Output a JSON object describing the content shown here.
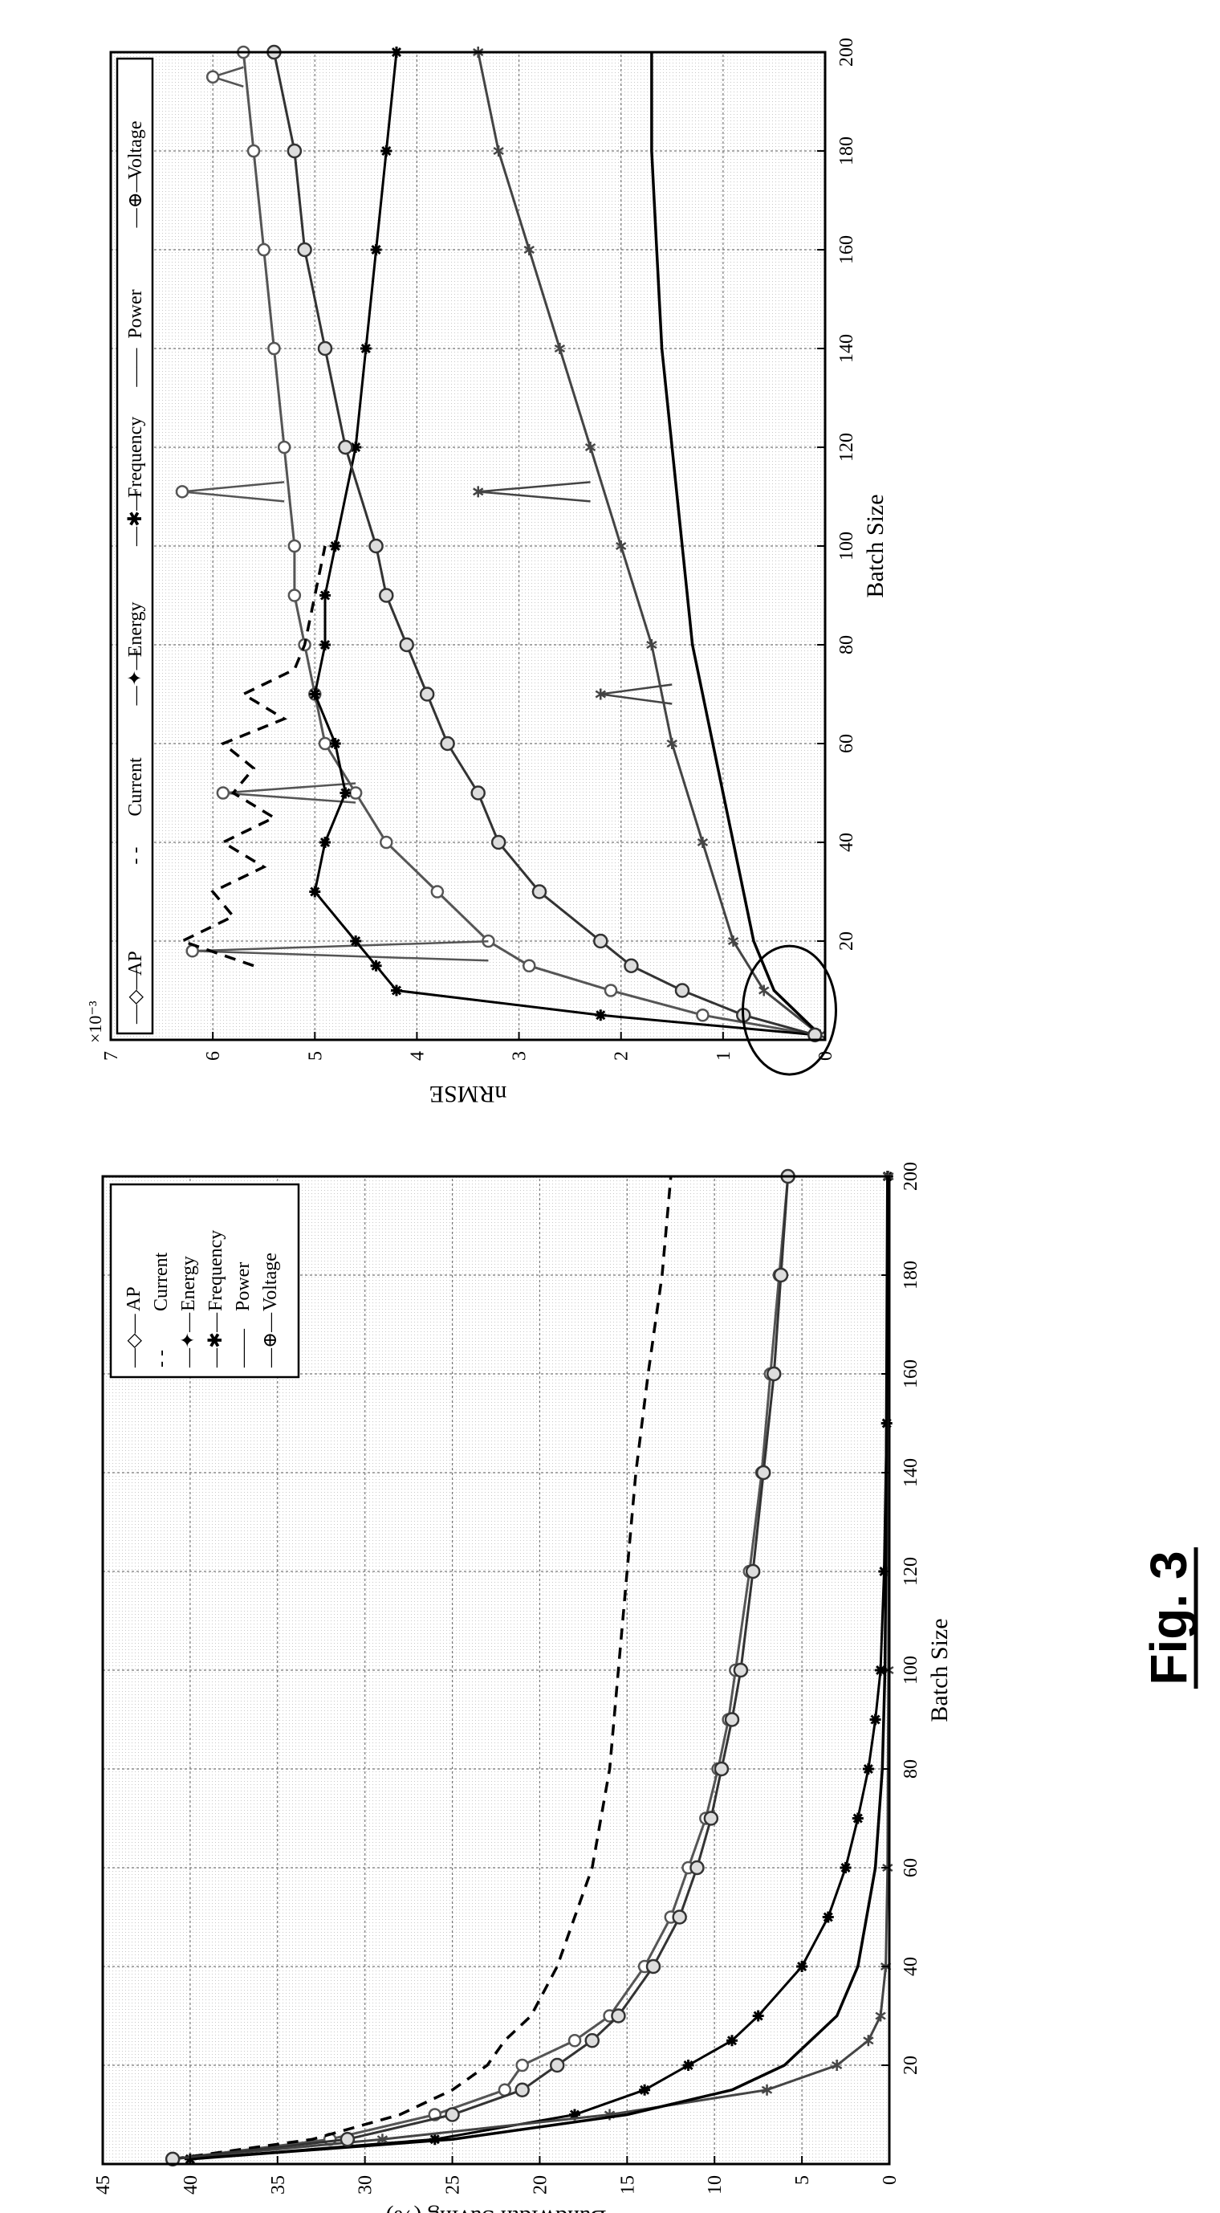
{
  "figure_label": "Fig. 3",
  "chart_data": [
    {
      "type": "line",
      "xlabel": "Batch Size",
      "ylabel": "nRMSE",
      "axis_multiplier": "×10⁻³",
      "xlim": [
        0,
        200
      ],
      "ylim": [
        0,
        7
      ],
      "xticks": [
        20,
        40,
        60,
        80,
        100,
        120,
        140,
        160,
        180,
        200
      ],
      "yticks": [
        0,
        1,
        2,
        3,
        4,
        5,
        6,
        7
      ],
      "grid": true,
      "legend_position": "top",
      "legend_marker_only": [
        "—◇—",
        "- -",
        "—✦—",
        "—✱—",
        "——",
        "—⊕—"
      ],
      "series": [
        {
          "name": "AP",
          "marker": "circle",
          "color": "#555555",
          "x": [
            1,
            5,
            10,
            15,
            20,
            30,
            40,
            50,
            60,
            70,
            80,
            90,
            100,
            120,
            140,
            160,
            180,
            200
          ],
          "y": [
            0.1,
            1.2,
            2.1,
            2.9,
            3.3,
            3.8,
            4.3,
            4.6,
            4.9,
            5.0,
            5.1,
            5.2,
            5.2,
            5.3,
            5.4,
            5.5,
            5.6,
            5.7
          ],
          "spikes": [
            {
              "x": 18,
              "y": 6.2
            },
            {
              "x": 50,
              "y": 5.9
            },
            {
              "x": 111,
              "y": 6.3
            },
            {
              "x": 195,
              "y": 6.0
            }
          ]
        },
        {
          "name": "Current",
          "marker": "none",
          "dash": "dashed",
          "color": "#000000",
          "x": [
            15,
            20,
            25,
            30,
            35,
            40,
            45,
            50,
            55,
            60,
            65,
            70,
            75,
            80,
            90,
            100
          ],
          "y": [
            5.6,
            6.3,
            5.8,
            6.0,
            5.5,
            5.9,
            5.4,
            5.8,
            5.6,
            5.9,
            5.3,
            5.7,
            5.2,
            5.1,
            5.0,
            4.9
          ]
        },
        {
          "name": "Energy",
          "marker": "star",
          "color": "#000000",
          "x": [
            1,
            5,
            10,
            15,
            20,
            30,
            40,
            50,
            60,
            70,
            80,
            90,
            100,
            120,
            140,
            160,
            180,
            200
          ],
          "y": [
            0.1,
            2.2,
            4.2,
            4.4,
            4.6,
            5.0,
            4.9,
            4.7,
            4.8,
            5.0,
            4.9,
            4.9,
            4.8,
            4.6,
            4.5,
            4.4,
            4.3,
            4.2
          ]
        },
        {
          "name": "Frequency",
          "marker": "asterisk",
          "color": "#444444",
          "x": [
            1,
            10,
            20,
            40,
            60,
            80,
            100,
            120,
            140,
            160,
            180,
            200
          ],
          "y": [
            0.05,
            0.6,
            0.9,
            1.2,
            1.5,
            1.7,
            2.0,
            2.3,
            2.6,
            2.9,
            3.2,
            3.4
          ],
          "spikes": [
            {
              "x": 70,
              "y": 2.2
            },
            {
              "x": 111,
              "y": 3.4
            }
          ]
        },
        {
          "name": "Power",
          "marker": "none",
          "color": "#000000",
          "x": [
            1,
            10,
            20,
            40,
            60,
            80,
            100,
            120,
            140,
            160,
            180,
            200
          ],
          "y": [
            0.05,
            0.5,
            0.7,
            0.9,
            1.1,
            1.3,
            1.4,
            1.5,
            1.6,
            1.65,
            1.7,
            1.7
          ]
        },
        {
          "name": "Voltage",
          "marker": "circle-plus",
          "color": "#333333",
          "x": [
            1,
            5,
            10,
            15,
            20,
            30,
            40,
            50,
            60,
            70,
            80,
            90,
            100,
            120,
            140,
            160,
            180,
            200
          ],
          "y": [
            0.1,
            0.8,
            1.4,
            1.9,
            2.2,
            2.8,
            3.2,
            3.4,
            3.7,
            3.9,
            4.1,
            4.3,
            4.4,
            4.7,
            4.9,
            5.1,
            5.2,
            5.4
          ]
        }
      ]
    },
    {
      "type": "line",
      "xlabel": "Batch Size",
      "ylabel": "Bandwidth Saving (%)",
      "xlim": [
        0,
        200
      ],
      "ylim": [
        0,
        45
      ],
      "xticks": [
        20,
        40,
        60,
        80,
        100,
        120,
        140,
        160,
        180,
        200
      ],
      "yticks": [
        0,
        5,
        10,
        15,
        20,
        25,
        30,
        35,
        40,
        45
      ],
      "grid": true,
      "legend_position": "top-right",
      "legend_marker_only": [
        "—◇—",
        "- -",
        "—✦—",
        "—✱—",
        "——",
        "—⊕—"
      ],
      "series": [
        {
          "name": "AP",
          "marker": "circle",
          "color": "#555555",
          "x": [
            1,
            5,
            10,
            15,
            20,
            25,
            30,
            40,
            50,
            60,
            70,
            80,
            90,
            100,
            120,
            140,
            160,
            180,
            200
          ],
          "y": [
            41,
            32,
            26,
            22,
            21,
            18,
            16,
            14,
            12.5,
            11.5,
            10.5,
            9.8,
            9.2,
            8.8,
            8,
            7.3,
            6.8,
            6.3,
            5.8
          ]
        },
        {
          "name": "Current",
          "marker": "none",
          "dash": "dashed",
          "color": "#000000",
          "x": [
            1,
            5,
            10,
            15,
            20,
            25,
            30,
            40,
            50,
            60,
            70,
            80,
            100,
            120,
            140,
            160,
            180,
            200
          ],
          "y": [
            41,
            33,
            28,
            25,
            23,
            22,
            20.5,
            19,
            18,
            17,
            16.5,
            16,
            15.5,
            15,
            14.5,
            13.8,
            13,
            12.5
          ]
        },
        {
          "name": "Energy",
          "marker": "star",
          "color": "#000000",
          "x": [
            1,
            5,
            10,
            15,
            20,
            25,
            30,
            40,
            50,
            60,
            70,
            80,
            90,
            100,
            120,
            150,
            200
          ],
          "y": [
            40,
            26,
            18,
            14,
            11.5,
            9,
            7.5,
            5,
            3.5,
            2.5,
            1.8,
            1.2,
            0.8,
            0.5,
            0.3,
            0.15,
            0.1
          ]
        },
        {
          "name": "Frequency",
          "marker": "asterisk",
          "color": "#444444",
          "x": [
            1,
            5,
            10,
            15,
            20,
            25,
            30,
            40,
            60,
            100,
            200
          ],
          "y": [
            41,
            29,
            16,
            7,
            3,
            1.2,
            0.5,
            0.2,
            0.1,
            0.05,
            0.05
          ]
        },
        {
          "name": "Power",
          "marker": "none",
          "color": "#000000",
          "x": [
            1,
            5,
            10,
            15,
            20,
            30,
            40,
            60,
            80,
            100,
            120,
            160,
            200
          ],
          "y": [
            40,
            25,
            15,
            9,
            6,
            3,
            1.8,
            0.8,
            0.4,
            0.25,
            0.2,
            0.15,
            0.1
          ]
        },
        {
          "name": "Voltage",
          "marker": "circle-plus",
          "color": "#333333",
          "x": [
            1,
            5,
            10,
            15,
            20,
            25,
            30,
            40,
            50,
            60,
            70,
            80,
            90,
            100,
            120,
            140,
            160,
            180,
            200
          ],
          "y": [
            41,
            31,
            25,
            21,
            19,
            17,
            15.5,
            13.5,
            12,
            11,
            10.2,
            9.6,
            9,
            8.5,
            7.8,
            7.2,
            6.6,
            6.2,
            5.8
          ]
        }
      ]
    }
  ]
}
